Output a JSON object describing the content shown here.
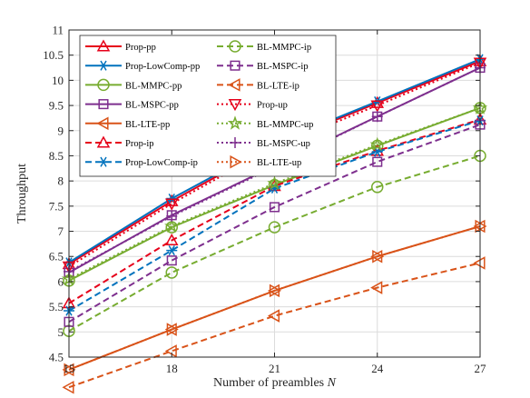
{
  "chart_data": {
    "type": "line",
    "xlabel": "Number of preambles N",
    "ylabel": "Throughput",
    "x": [
      15,
      18,
      21,
      24,
      27
    ],
    "xlim": [
      15,
      27
    ],
    "ylim": [
      4.5,
      11
    ],
    "xticks": [
      15,
      18,
      21,
      24,
      27
    ],
    "yticks": [
      4.5,
      5,
      5.5,
      6,
      6.5,
      7,
      7.5,
      8,
      8.5,
      9,
      9.5,
      10,
      10.5,
      11
    ],
    "grid": true,
    "legend_position": "top-left",
    "series": [
      {
        "name": "Prop-pp",
        "color": "#e6001a",
        "dash": "solid",
        "marker": "triangle-up",
        "values": [
          6.35,
          7.6,
          8.72,
          9.55,
          10.38
        ]
      },
      {
        "name": "Prop-LowComp-pp",
        "color": "#0072bd",
        "dash": "solid",
        "marker": "asterisk",
        "values": [
          6.38,
          7.65,
          8.75,
          9.58,
          10.42
        ]
      },
      {
        "name": "BL-MMPC-pp",
        "color": "#77ac30",
        "dash": "solid",
        "marker": "circle",
        "values": [
          6.02,
          7.08,
          7.92,
          8.7,
          9.45
        ]
      },
      {
        "name": "BL-MSPC-pp",
        "color": "#7e2f8e",
        "dash": "solid",
        "marker": "square",
        "values": [
          6.18,
          7.32,
          8.3,
          9.28,
          10.25
        ]
      },
      {
        "name": "BL-LTE-pp",
        "color": "#d95319",
        "dash": "solid",
        "marker": "triangle-left",
        "values": [
          4.25,
          5.05,
          5.82,
          6.5,
          7.1
        ]
      },
      {
        "name": "Prop-ip",
        "color": "#e6001a",
        "dash": "dashed",
        "marker": "triangle-up",
        "values": [
          5.57,
          6.82,
          7.9,
          8.6,
          9.22
        ]
      },
      {
        "name": "Prop-LowComp-ip",
        "color": "#0072bd",
        "dash": "dashed",
        "marker": "asterisk",
        "values": [
          5.42,
          6.62,
          7.85,
          8.58,
          9.2
        ]
      },
      {
        "name": "BL-MMPC-ip",
        "color": "#77ac30",
        "dash": "dashed",
        "marker": "circle",
        "values": [
          5.02,
          6.18,
          7.08,
          7.88,
          8.5
        ]
      },
      {
        "name": "BL-MSPC-ip",
        "color": "#7e2f8e",
        "dash": "dashed",
        "marker": "square",
        "values": [
          5.2,
          6.42,
          7.48,
          8.38,
          9.12
        ]
      },
      {
        "name": "BL-LTE-ip",
        "color": "#d95319",
        "dash": "dashed",
        "marker": "triangle-left",
        "values": [
          3.9,
          4.62,
          5.32,
          5.88,
          6.37
        ]
      },
      {
        "name": "Prop-up",
        "color": "#e6001a",
        "dash": "dotted",
        "marker": "triangle-down",
        "values": [
          6.3,
          7.55,
          8.68,
          9.5,
          10.35
        ]
      },
      {
        "name": "BL-MMPC-up",
        "color": "#77ac30",
        "dash": "dotted",
        "marker": "star",
        "values": [
          6.05,
          7.1,
          7.95,
          8.72,
          9.45
        ]
      },
      {
        "name": "BL-MSPC-up",
        "color": "#7e2f8e",
        "dash": "dotted",
        "marker": "plus",
        "values": [
          6.2,
          7.3,
          8.28,
          9.28,
          10.25
        ]
      },
      {
        "name": "BL-LTE-up",
        "color": "#d95319",
        "dash": "dotted",
        "marker": "triangle-right",
        "values": [
          4.25,
          5.05,
          5.82,
          6.5,
          7.1
        ]
      }
    ]
  }
}
